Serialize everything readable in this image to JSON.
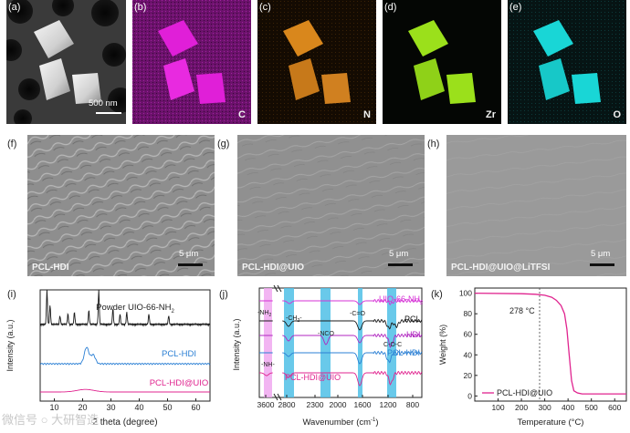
{
  "panels": {
    "a": {
      "letter": "(a)",
      "scale_label": "500 nm"
    },
    "b": {
      "letter": "(b)",
      "element": "C",
      "color": "#e01fd8"
    },
    "c": {
      "letter": "(c)",
      "element": "N",
      "color": "#d9871c"
    },
    "d": {
      "letter": "(d)",
      "element": "Zr",
      "color": "#9be01b"
    },
    "e": {
      "letter": "(e)",
      "element": "O",
      "color": "#19d6d6"
    },
    "f": {
      "letter": "(f)",
      "label": "PCL-HDI",
      "scale_label": "5 μm"
    },
    "g": {
      "letter": "(g)",
      "label": "PCL-HDI@UIO",
      "scale_label": "5 μm"
    },
    "h": {
      "letter": "(h)",
      "label": "PCL-HDI@UIO@LiTFSI",
      "scale_label": "5 μm"
    },
    "i": {
      "letter": "(i)"
    },
    "j": {
      "letter": "(j)"
    },
    "k": {
      "letter": "(k)"
    }
  },
  "chart_data": [
    {
      "type": "line",
      "id": "xrd",
      "xlabel": "2 theta (degree)",
      "ylabel": "Intensity (a.u.)",
      "xlim": [
        5,
        65
      ],
      "xticks": [
        10,
        20,
        30,
        40,
        50,
        60
      ],
      "series": [
        {
          "name": "Powder UIO-66-NH",
          "subscript": "2",
          "color": "#1a1a1a",
          "peaks": [
            [
              7.4,
              1.0
            ],
            [
              8.5,
              0.55
            ],
            [
              12.0,
              0.25
            ],
            [
              14.8,
              0.3
            ],
            [
              17.1,
              0.35
            ],
            [
              22.2,
              0.4
            ],
            [
              25.7,
              1.0
            ],
            [
              30.7,
              0.45
            ],
            [
              33.2,
              0.3
            ],
            [
              35.6,
              0.35
            ],
            [
              43.4,
              0.3
            ],
            [
              50.4,
              0.25
            ]
          ]
        },
        {
          "name": "PCL-HDI",
          "color": "#2a7fd4",
          "peaks": [
            [
              21.4,
              1.0
            ],
            [
              23.7,
              0.55
            ]
          ]
        },
        {
          "name": "PCL-HDI@UIO",
          "color": "#e0248f",
          "peaks": [
            [
              21.0,
              0.35
            ]
          ]
        }
      ]
    },
    {
      "type": "line",
      "id": "ftir",
      "xlabel": "Wavenumber (cm",
      "xlabel_sup": "-1",
      "ylabel": "Intensity (a.u.)",
      "xticks": [
        3600,
        2800,
        2300,
        2000,
        1600,
        1200,
        800
      ],
      "series": [
        {
          "name": "UIO-66-NH",
          "subscript": "2",
          "color": "#d630d6"
        },
        {
          "name": "PCL",
          "color": "#1a1a1a"
        },
        {
          "name": "HDI",
          "color": "#b026c0"
        },
        {
          "name": "PCL-HDI",
          "color": "#2a7fd4"
        },
        {
          "name": "PCL-HDI@UIO",
          "color": "#e0248f"
        }
      ],
      "annotations": [
        "-NH",
        "-CH",
        "-NCO",
        "-C=O",
        "C-O-C",
        "-NH-"
      ],
      "annotation_subs": {
        "NH2": "2",
        "CH2": "2"
      }
    },
    {
      "type": "line",
      "id": "tga",
      "xlabel": "Temperature (°C)",
      "ylabel": "Weight (%)",
      "xlim": [
        0,
        650
      ],
      "ylim": [
        -5,
        105
      ],
      "xticks": [
        100,
        200,
        300,
        400,
        500,
        600
      ],
      "yticks": [
        0,
        20,
        40,
        60,
        80,
        100
      ],
      "series": [
        {
          "name": "PCL-HDI@UIO",
          "color": "#e0248f",
          "x": [
            0,
            200,
            260,
            300,
            330,
            350,
            370,
            385,
            395,
            405,
            415,
            425,
            440,
            460,
            650
          ],
          "y": [
            100,
            99.5,
            99,
            98,
            96,
            93,
            88,
            80,
            65,
            40,
            15,
            5,
            3,
            2,
            2
          ]
        }
      ],
      "annotation": "278 °C",
      "marker_x": 278
    }
  ],
  "watermark": "微信号 ○ 大研智造"
}
